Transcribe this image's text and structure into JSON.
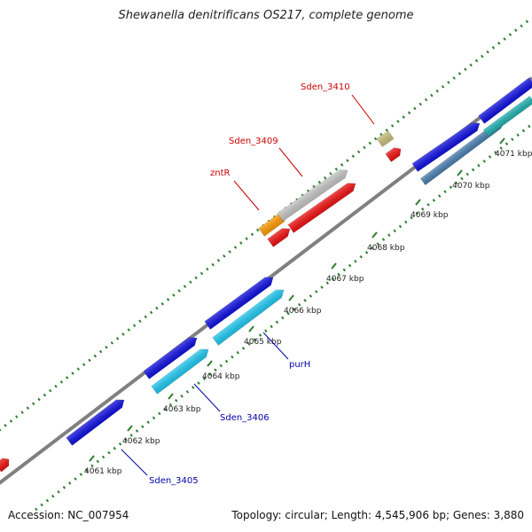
{
  "map": {
    "title": "Shewanella denitrificans OS217, complete genome",
    "accession": "Accession: NC_007954",
    "info": "Topology: circular; Length: 4,545,906 bp; Genes: 3,880"
  },
  "scale_ticks": [
    {
      "label": "4061 kbp"
    },
    {
      "label": "4062 kbp"
    },
    {
      "label": "4063 kbp"
    },
    {
      "label": "4064 kbp"
    },
    {
      "label": "4065 kbp"
    },
    {
      "label": "4066 kbp"
    },
    {
      "label": "4067 kbp"
    },
    {
      "label": "4068 kbp"
    },
    {
      "label": "4069 kbp"
    },
    {
      "label": "4070 kbp"
    },
    {
      "label": "4071 kbp"
    }
  ],
  "labeled_genes": [
    {
      "label": "Sden_3410",
      "color": "#cc0000"
    },
    {
      "label": "Sden_3409",
      "color": "#cc0000"
    },
    {
      "label": "zntR",
      "color": "#cc0000"
    },
    {
      "label": "purH",
      "color": "#0000aa"
    },
    {
      "label": "Sden_3406",
      "color": "#0000aa"
    },
    {
      "label": "Sden_3405",
      "color": "#0000aa"
    }
  ],
  "colors": {
    "backbone": "#808080",
    "dotted_ring": "#2e7d2e",
    "gene_blue": "#1010e0",
    "gene_cyan": "#20c8f0",
    "gene_red": "#ee1111",
    "gene_orange": "#ff9900",
    "gene_gray": "#c4c4c4",
    "gene_khaki": "#c8bf7a",
    "gene_steel": "#4a7fb0",
    "gene_teal": "#20b0b0"
  }
}
